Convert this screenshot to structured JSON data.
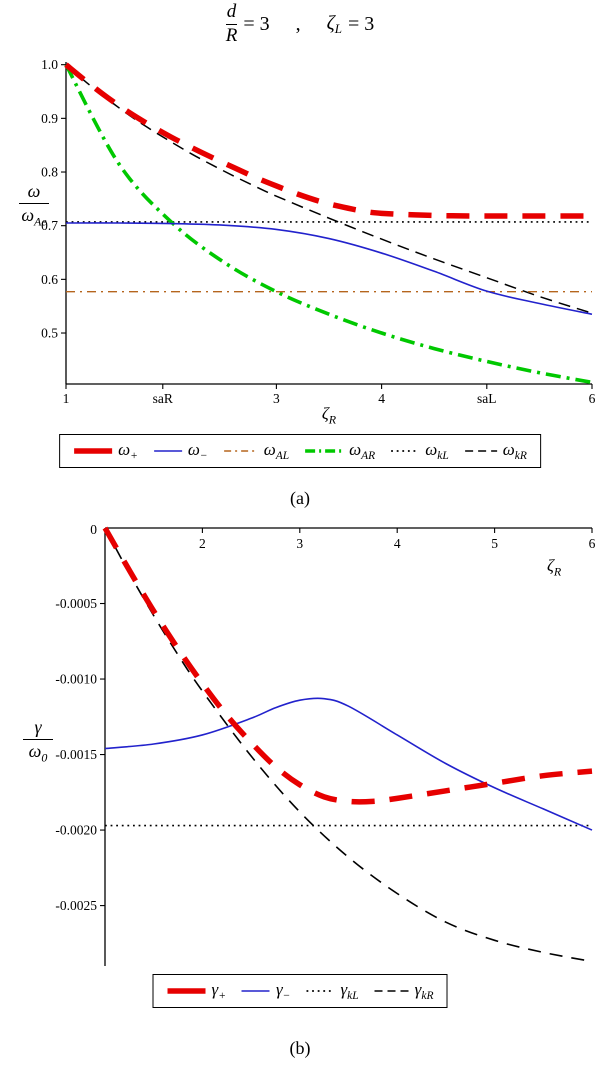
{
  "title": {
    "frac_num": "d",
    "frac_den": "R",
    "eq1": "= 3",
    "comma": ",",
    "zeta": "ζ",
    "zeta_sub": "L",
    "eq2": "= 3"
  },
  "ylabels": {
    "a": {
      "num": "ω",
      "den_base": "ω",
      "den_sub": "Ae"
    },
    "b": {
      "num": "γ",
      "den_base": "ω",
      "den_sub": "0"
    }
  },
  "xlabels": {
    "a": {
      "base": "ζ",
      "sub": "R"
    },
    "b": {
      "base": "ζ",
      "sub": "R"
    }
  },
  "captions": {
    "a": "(a)",
    "b": "(b)"
  },
  "chart_data": [
    {
      "id": "a",
      "type": "line",
      "title": "d/R = 3 , ζ_L = 3",
      "xlabel": "ζ_R",
      "ylabel": "ω/ω_Ae",
      "xlim": [
        1,
        6
      ],
      "ylim": [
        0.405,
        1.005
      ],
      "grid": false,
      "legend_position": "bottom",
      "x_axis": {
        "side": "bottom",
        "ticks": [
          {
            "v": 1,
            "label": "1"
          },
          {
            "v": 1.92,
            "label": "saR"
          },
          {
            "v": 3,
            "label": "3"
          },
          {
            "v": 4,
            "label": "4"
          },
          {
            "v": 5,
            "label": "saL"
          },
          {
            "v": 6,
            "label": "6"
          }
        ]
      },
      "y_axis": {
        "origin_label": null,
        "ticks": [
          {
            "v": 0.5,
            "label": "0.5"
          },
          {
            "v": 0.6,
            "label": "0.6"
          },
          {
            "v": 0.7,
            "label": "0.7"
          },
          {
            "v": 0.8,
            "label": "0.8"
          },
          {
            "v": 0.9,
            "label": "0.9"
          },
          {
            "v": 1.0,
            "label": "1.0"
          }
        ]
      },
      "series": [
        {
          "id": "omega-plus",
          "label": {
            "base": "ω",
            "sub": "+"
          },
          "color": "#e60000",
          "width": 5.5,
          "dash": "23,15",
          "swatch": {
            "w": 40,
            "dash": null,
            "width": 5.5
          },
          "x": [
            1,
            1.2,
            1.4,
            1.6,
            1.8,
            2,
            2.2,
            2.4,
            2.6,
            2.8,
            3,
            3.2,
            3.4,
            3.6,
            3.8,
            4,
            4.5,
            5,
            5.5,
            6
          ],
          "y": [
            1.0,
            0.968,
            0.938,
            0.911,
            0.887,
            0.865,
            0.845,
            0.826,
            0.808,
            0.79,
            0.774,
            0.759,
            0.746,
            0.736,
            0.728,
            0.723,
            0.719,
            0.718,
            0.718,
            0.718
          ]
        },
        {
          "id": "omega-minus",
          "label": {
            "base": "ω",
            "sub": "−"
          },
          "color": "#2222cc",
          "width": 1.6,
          "dash": null,
          "swatch": {
            "w": 30,
            "dash": null,
            "width": 1.6
          },
          "x": [
            1,
            1.5,
            2,
            2.5,
            3,
            3.5,
            4,
            4.5,
            5,
            5.5,
            6
          ],
          "y": [
            0.705,
            0.705,
            0.704,
            0.701,
            0.693,
            0.676,
            0.649,
            0.615,
            0.578,
            0.555,
            0.535
          ]
        },
        {
          "id": "omega-AL",
          "label": {
            "base": "ω",
            "sub": "AL"
          },
          "color": "#b5651d",
          "width": 1.4,
          "dash": "9,5,2,5",
          "swatch": {
            "w": 36,
            "dash": "7,4,2,4",
            "width": 1.4
          },
          "x": [
            1,
            6
          ],
          "y": [
            0.577,
            0.577
          ]
        },
        {
          "id": "omega-AR",
          "label": {
            "base": "ω",
            "sub": "AR"
          },
          "color": "#00c800",
          "width": 3.6,
          "dash": "15,6,3,6",
          "swatch": {
            "w": 40,
            "dash": "10,4,2,4",
            "width": 3.6
          },
          "x": [
            1,
            1.5,
            2,
            2.5,
            3,
            3.5,
            4,
            4.5,
            5,
            5.5,
            6
          ],
          "y": [
            1.0,
            0.816,
            0.707,
            0.632,
            0.577,
            0.535,
            0.5,
            0.471,
            0.447,
            0.426,
            0.408
          ]
        },
        {
          "id": "omega-kL",
          "label": {
            "base": "ω",
            "sub": "kL"
          },
          "color": "#000000",
          "width": 1.7,
          "dash": "1.8,3.8",
          "swatch": {
            "w": 30,
            "dash": "1.8,3.8",
            "width": 1.7
          },
          "x": [
            1,
            6
          ],
          "y": [
            0.707,
            0.707
          ]
        },
        {
          "id": "omega-kR",
          "label": {
            "base": "ω",
            "sub": "kR"
          },
          "color": "#000000",
          "width": 1.5,
          "dash": "12,7",
          "swatch": {
            "w": 34,
            "dash": "8,5",
            "width": 1.5
          },
          "x": [
            1,
            1.2,
            1.4,
            1.6,
            1.8,
            2,
            2.2,
            2.4,
            2.6,
            2.8,
            3,
            3.5,
            4,
            4.5,
            5,
            5.5,
            6
          ],
          "y": [
            1.0,
            0.966,
            0.935,
            0.906,
            0.88,
            0.856,
            0.833,
            0.812,
            0.792,
            0.773,
            0.755,
            0.714,
            0.675,
            0.638,
            0.603,
            0.568,
            0.537
          ]
        }
      ]
    },
    {
      "id": "b",
      "type": "line",
      "title": "",
      "xlabel": "ζ_R",
      "ylabel": "γ/ω_0",
      "xlim": [
        1,
        6
      ],
      "ylim": [
        -0.0029,
        0
      ],
      "grid": false,
      "legend_position": "bottom",
      "x_axis": {
        "side": "top",
        "ticks": [
          {
            "v": 2,
            "label": "2"
          },
          {
            "v": 3,
            "label": "3"
          },
          {
            "v": 4,
            "label": "4"
          },
          {
            "v": 5,
            "label": "5"
          },
          {
            "v": 6,
            "label": "6"
          }
        ]
      },
      "y_axis": {
        "origin_label": "0",
        "ticks": [
          {
            "v": -0.0005,
            "label": "-0.0005"
          },
          {
            "v": -0.001,
            "label": "-0.0010"
          },
          {
            "v": -0.0015,
            "label": "-0.0015"
          },
          {
            "v": -0.002,
            "label": "-0.0020"
          },
          {
            "v": -0.0025,
            "label": "-0.0025"
          }
        ]
      },
      "series": [
        {
          "id": "gamma-plus",
          "label": {
            "base": "γ",
            "sub": "+"
          },
          "color": "#e60000",
          "width": 5.5,
          "dash": "23,15",
          "swatch": {
            "w": 40,
            "dash": null,
            "width": 5.5
          },
          "x": [
            1,
            1.25,
            1.5,
            1.75,
            2,
            2.25,
            2.5,
            2.75,
            3,
            3.25,
            3.5,
            3.75,
            4,
            4.5,
            5,
            5.5,
            6
          ],
          "y": [
            0,
            -0.00028,
            -0.00055,
            -0.0008,
            -0.00103,
            -0.00124,
            -0.00142,
            -0.00158,
            -0.0017,
            -0.00178,
            -0.00181,
            -0.00181,
            -0.00179,
            -0.00174,
            -0.00169,
            -0.00164,
            -0.00161
          ]
        },
        {
          "id": "gamma-minus",
          "label": {
            "base": "γ",
            "sub": "−"
          },
          "color": "#2222cc",
          "width": 1.6,
          "dash": null,
          "swatch": {
            "w": 30,
            "dash": null,
            "width": 1.6
          },
          "x": [
            1,
            1.5,
            2,
            2.5,
            2.75,
            3,
            3.25,
            3.5,
            4,
            4.5,
            5,
            5.5,
            6
          ],
          "y": [
            -0.00146,
            -0.00143,
            -0.00137,
            -0.00126,
            -0.00119,
            -0.00114,
            -0.00113,
            -0.00118,
            -0.00137,
            -0.00156,
            -0.00172,
            -0.00186,
            -0.002
          ]
        },
        {
          "id": "gamma-kL",
          "label": {
            "base": "γ",
            "sub": "kL"
          },
          "color": "#000000",
          "width": 1.7,
          "dash": "1.8,3.8",
          "swatch": {
            "w": 30,
            "dash": "1.8,3.8",
            "width": 1.7
          },
          "x": [
            1,
            6
          ],
          "y": [
            -0.00197,
            -0.00197
          ]
        },
        {
          "id": "gamma-kR",
          "label": {
            "base": "γ",
            "sub": "kR"
          },
          "color": "#000000",
          "width": 1.6,
          "dash": "13,9",
          "swatch": {
            "w": 36,
            "dash": "8,5",
            "width": 1.6
          },
          "x": [
            1,
            1.25,
            1.5,
            1.75,
            2,
            2.5,
            3,
            3.5,
            4,
            4.5,
            5,
            5.5,
            6
          ],
          "y": [
            0,
            -0.0003,
            -0.00058,
            -0.00084,
            -0.00108,
            -0.00151,
            -0.00188,
            -0.00218,
            -0.00242,
            -0.00261,
            -0.00273,
            -0.00281,
            -0.00287
          ]
        }
      ]
    }
  ]
}
